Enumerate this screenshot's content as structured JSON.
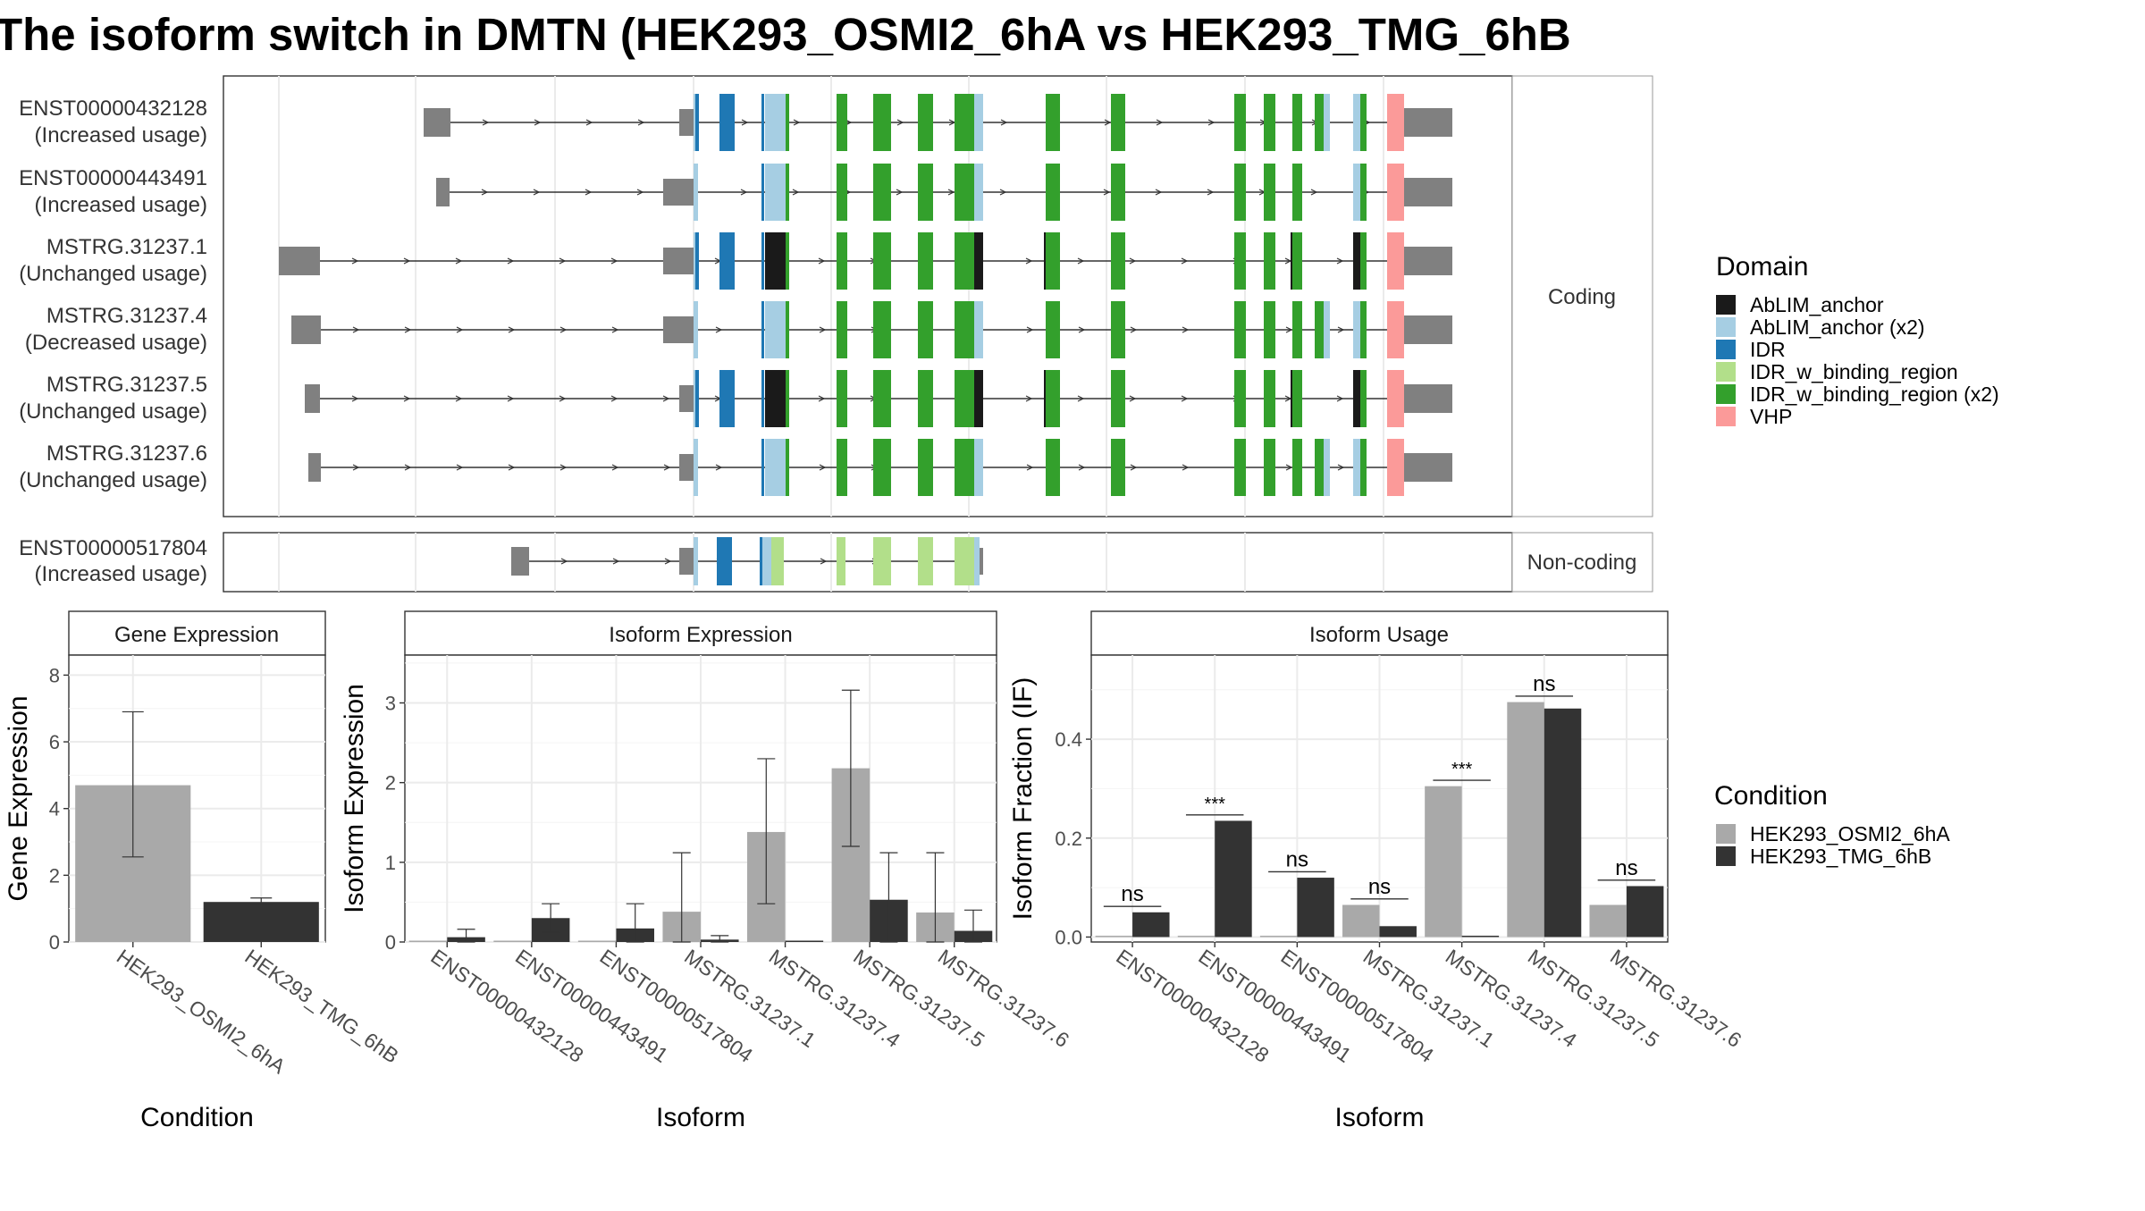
{
  "title": "The isoform switch in DMTN (HEK293_OSMI2_6hA vs HEK293_TMG_6hB",
  "colors": {
    "AbLIM_anchor": "#1a1a1a",
    "AbLIM_anchor (x2)": "#a6cee3",
    "IDR": "#1f78b4",
    "IDR_w_binding_region": "#b2df8a",
    "IDR_w_binding_region (x2)": "#33a02c",
    "VHP": "#fb9a99",
    "utr": "#808080",
    "cond1": "#a9a9a9",
    "cond2": "#333333"
  },
  "structure": {
    "coding_label": "Coding",
    "noncoding_label": "Non-coding",
    "coding": [
      {
        "id": "ENST00000432128",
        "usage": "(Increased usage)"
      },
      {
        "id": "ENST00000443491",
        "usage": "(Increased usage)"
      },
      {
        "id": "MSTRG.31237.1",
        "usage": "(Unchanged usage)"
      },
      {
        "id": "MSTRG.31237.4",
        "usage": "(Decreased usage)"
      },
      {
        "id": "MSTRG.31237.5",
        "usage": "(Unchanged usage)"
      },
      {
        "id": "MSTRG.31237.6",
        "usage": "(Unchanged usage)"
      }
    ],
    "noncoding": [
      {
        "id": "ENST00000517804",
        "usage": "(Increased usage)"
      }
    ]
  },
  "domain_legend": {
    "title": "Domain",
    "items": [
      "AbLIM_anchor",
      "AbLIM_anchor (x2)",
      "IDR",
      "IDR_w_binding_region",
      "IDR_w_binding_region (x2)",
      "VHP"
    ]
  },
  "condition_legend": {
    "title": "Condition",
    "items": [
      "HEK293_OSMI2_6hA",
      "HEK293_TMG_6hB"
    ]
  },
  "chart_data": [
    {
      "type": "bar",
      "title": "Gene Expression",
      "xlabel": "Condition",
      "ylabel": "Gene Expression",
      "ylim": [
        0,
        8.6
      ],
      "yticks": [
        0,
        2,
        4,
        6,
        8
      ],
      "categories": [
        "HEK293_OSMI2_6hA",
        "HEK293_TMG_6hB"
      ],
      "values": [
        4.7,
        1.2
      ],
      "error_low": [
        2.55,
        1.1
      ],
      "error_high": [
        6.9,
        1.32
      ]
    },
    {
      "type": "bar",
      "title": "Isoform Expression",
      "xlabel": "Isoform",
      "ylabel": "Isoform Expression",
      "ylim": [
        0,
        3.6
      ],
      "yticks": [
        0,
        1,
        2,
        3
      ],
      "categories": [
        "ENST00000432128",
        "ENST00000443491",
        "ENST00000517804",
        "MSTRG.31237.1",
        "MSTRG.31237.4",
        "MSTRG.31237.5",
        "MSTRG.31237.6"
      ],
      "series": [
        {
          "name": "HEK293_OSMI2_6hA",
          "values": [
            0.0,
            0.0,
            0.0,
            0.38,
            1.38,
            2.18,
            0.37
          ],
          "error_low": [
            0.0,
            0.0,
            0.0,
            0.0,
            0.48,
            1.2,
            0.0
          ],
          "error_high": [
            0.0,
            0.0,
            0.0,
            1.12,
            2.3,
            3.16,
            1.12
          ]
        },
        {
          "name": "HEK293_TMG_6hB",
          "values": [
            0.06,
            0.3,
            0.17,
            0.03,
            0.0,
            0.53,
            0.14
          ],
          "error_low": [
            0.0,
            0.12,
            0.0,
            0.0,
            0.0,
            0.0,
            0.0
          ],
          "error_high": [
            0.16,
            0.48,
            0.48,
            0.08,
            0.0,
            1.12,
            0.4
          ]
        }
      ]
    },
    {
      "type": "bar",
      "title": "Isoform Usage",
      "xlabel": "Isoform",
      "ylabel": "Isoform Fraction (IF)",
      "ylim": [
        -0.01,
        0.57
      ],
      "yticks": [
        0.0,
        0.2,
        0.4
      ],
      "categories": [
        "ENST00000432128",
        "ENST00000443491",
        "ENST00000517804",
        "MSTRG.31237.1",
        "MSTRG.31237.4",
        "MSTRG.31237.5",
        "MSTRG.31237.6"
      ],
      "series": [
        {
          "name": "HEK293_OSMI2_6hA",
          "values": [
            0.0,
            0.0,
            0.0,
            0.065,
            0.305,
            0.475,
            0.065
          ]
        },
        {
          "name": "HEK293_TMG_6hB",
          "values": [
            0.05,
            0.235,
            0.12,
            0.022,
            0.0,
            0.462,
            0.103
          ]
        }
      ],
      "significance": [
        "ns",
        "***",
        "ns",
        "ns",
        "***",
        "ns",
        "ns"
      ]
    }
  ]
}
